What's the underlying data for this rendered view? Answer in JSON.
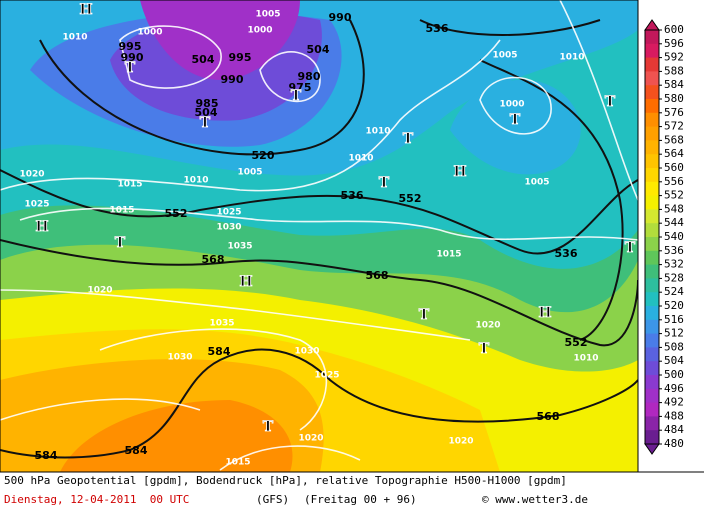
{
  "colorbar": {
    "labels": [
      600,
      596,
      592,
      588,
      584,
      580,
      576,
      572,
      568,
      564,
      560,
      556,
      552,
      548,
      544,
      540,
      536,
      532,
      528,
      524,
      520,
      516,
      512,
      508,
      504,
      500,
      496,
      492,
      488,
      484,
      480
    ],
    "colors": [
      "#c2185b",
      "#d81b60",
      "#e53935",
      "#ef5350",
      "#f4511e",
      "#ff6d00",
      "#ff8f00",
      "#ffa000",
      "#ffb300",
      "#ffc400",
      "#ffd600",
      "#ffea00",
      "#f4f000",
      "#d4e830",
      "#b2dd3c",
      "#8bd24a",
      "#5fc65a",
      "#3fbf7a",
      "#2ebf9e",
      "#22c0c0",
      "#2ab0e0",
      "#3c96e8",
      "#4a7ce8",
      "#5a62e0",
      "#6e4cd8",
      "#8a3ad0",
      "#a030c8",
      "#b028c0",
      "#8a24a8",
      "#6a1e90"
    ]
  },
  "map": {
    "labels": [
      "1010",
      "995",
      "990",
      "1000",
      "504",
      "1005",
      "1000",
      "995",
      "990",
      "504",
      "980",
      "975",
      "985",
      "504",
      "990",
      "536",
      "1005",
      "1000",
      "1010",
      "520",
      "1005",
      "1010",
      "1015",
      "1010",
      "1010",
      "536",
      "552",
      "1005",
      "1020",
      "1025",
      "1015",
      "552",
      "1025",
      "1030",
      "1035",
      "568",
      "1020",
      "568",
      "1015",
      "536",
      "1035",
      "1030",
      "584",
      "1030",
      "1025",
      "1020",
      "552",
      "1010",
      "568",
      "584",
      "584",
      "1020",
      "1015",
      "1020",
      "H",
      "T",
      "T",
      "T",
      "T",
      "T",
      "T",
      "H",
      "H",
      "T",
      "H",
      "T",
      "T",
      "T",
      "H",
      "T",
      "T"
    ]
  },
  "footer": {
    "description": "500 hPa Geopotential [gpdm], Bodendruck [hPa], relative Topographie H500-H1000 [gpdm]",
    "date": "Dienstag, 12-04-2011  00 UTC",
    "model": "(GFS)",
    "run": "(Freitag 00 + 96)",
    "credit": "© www.wetter3.de"
  }
}
